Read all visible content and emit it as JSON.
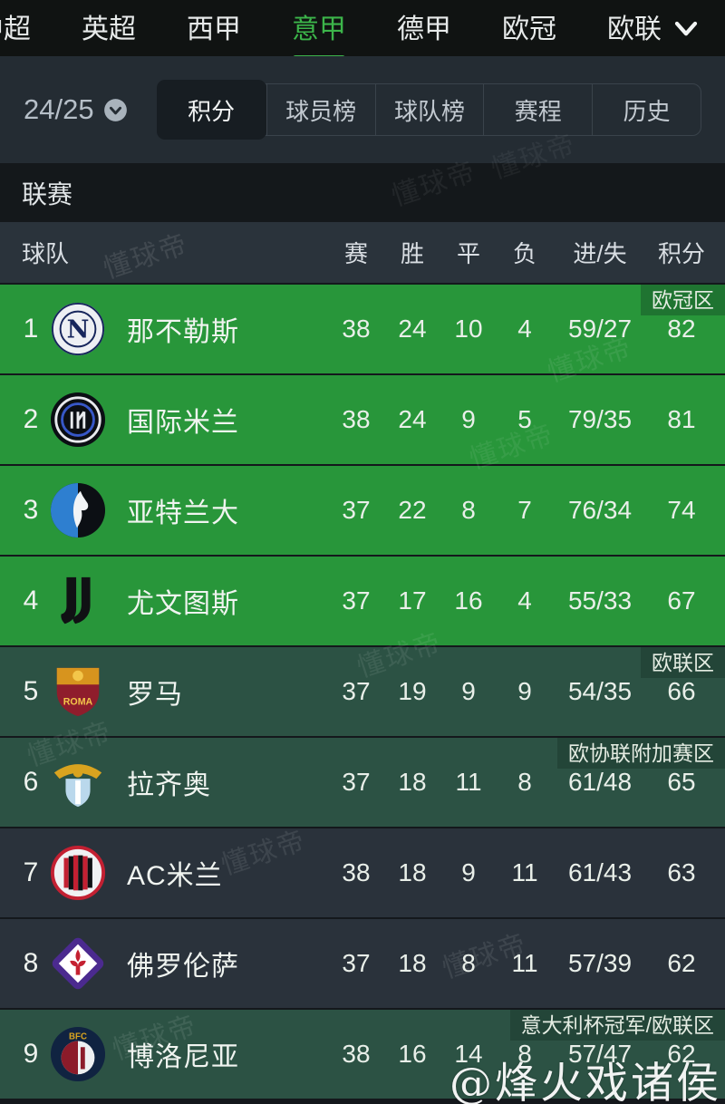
{
  "top_nav": {
    "tabs": [
      {
        "label": "中超",
        "active": false
      },
      {
        "label": "英超",
        "active": false
      },
      {
        "label": "西甲",
        "active": false
      },
      {
        "label": "意甲",
        "active": true
      },
      {
        "label": "德甲",
        "active": false
      },
      {
        "label": "欧冠",
        "active": false
      },
      {
        "label": "欧联",
        "active": false
      }
    ],
    "more_icon": "chevron-down-icon",
    "active_color": "#3cb54a"
  },
  "filter_bar": {
    "season": "24/25",
    "season_icon": "chevron-down-circle-icon",
    "tabs": [
      {
        "label": "积分",
        "active": true
      },
      {
        "label": "球员榜",
        "active": false
      },
      {
        "label": "球队榜",
        "active": false
      },
      {
        "label": "赛程",
        "active": false
      },
      {
        "label": "历史",
        "active": false
      }
    ]
  },
  "section_title": "联赛",
  "table": {
    "headers": {
      "team": "球队",
      "played": "赛",
      "win": "胜",
      "draw": "平",
      "loss": "负",
      "goals": "进/失",
      "points": "积分"
    },
    "rows": [
      {
        "rank": "1",
        "team": "那不勒斯",
        "logo": "napoli-crest",
        "played": "38",
        "win": "24",
        "draw": "10",
        "loss": "4",
        "goals": "59/27",
        "points": "82",
        "zone": "champions",
        "badge": "欧冠区"
      },
      {
        "rank": "2",
        "team": "国际米兰",
        "logo": "inter-crest",
        "played": "38",
        "win": "24",
        "draw": "9",
        "loss": "5",
        "goals": "79/35",
        "points": "81",
        "zone": "champions",
        "badge": ""
      },
      {
        "rank": "3",
        "team": "亚特兰大",
        "logo": "atalanta-crest",
        "played": "37",
        "win": "22",
        "draw": "8",
        "loss": "7",
        "goals": "76/34",
        "points": "74",
        "zone": "champions",
        "badge": ""
      },
      {
        "rank": "4",
        "team": "尤文图斯",
        "logo": "juventus-crest",
        "played": "37",
        "win": "17",
        "draw": "16",
        "loss": "4",
        "goals": "55/33",
        "points": "67",
        "zone": "champions",
        "badge": ""
      },
      {
        "rank": "5",
        "team": "罗马",
        "logo": "roma-crest",
        "played": "37",
        "win": "19",
        "draw": "9",
        "loss": "9",
        "goals": "54/35",
        "points": "66",
        "zone": "europa",
        "badge": "欧联区"
      },
      {
        "rank": "6",
        "team": "拉齐奥",
        "logo": "lazio-crest",
        "played": "37",
        "win": "18",
        "draw": "11",
        "loss": "8",
        "goals": "61/48",
        "points": "65",
        "zone": "europa",
        "badge": "欧协联附加赛区"
      },
      {
        "rank": "7",
        "team": "AC米兰",
        "logo": "acmilan-crest",
        "played": "38",
        "win": "18",
        "draw": "9",
        "loss": "11",
        "goals": "61/43",
        "points": "63",
        "zone": "none",
        "badge": ""
      },
      {
        "rank": "8",
        "team": "佛罗伦萨",
        "logo": "fiorentina-crest",
        "played": "37",
        "win": "18",
        "draw": "8",
        "loss": "11",
        "goals": "57/39",
        "points": "62",
        "zone": "none",
        "badge": ""
      },
      {
        "rank": "9",
        "team": "博洛尼亚",
        "logo": "bologna-crest",
        "played": "38",
        "win": "16",
        "draw": "14",
        "loss": "8",
        "goals": "57/47",
        "points": "62",
        "zone": "europa",
        "badge": "意大利杯冠军/欧联区"
      }
    ]
  },
  "watermarks": {
    "brand": "懂球帝",
    "signature": "@烽火戏诸侯"
  },
  "colors": {
    "accent_green": "#3cb54a",
    "row_champions": "#28963a",
    "row_europa": "#2c5244",
    "row_plain": "#2a323b",
    "badge_champions": "#1f7431",
    "badge_europa": "#234538"
  }
}
